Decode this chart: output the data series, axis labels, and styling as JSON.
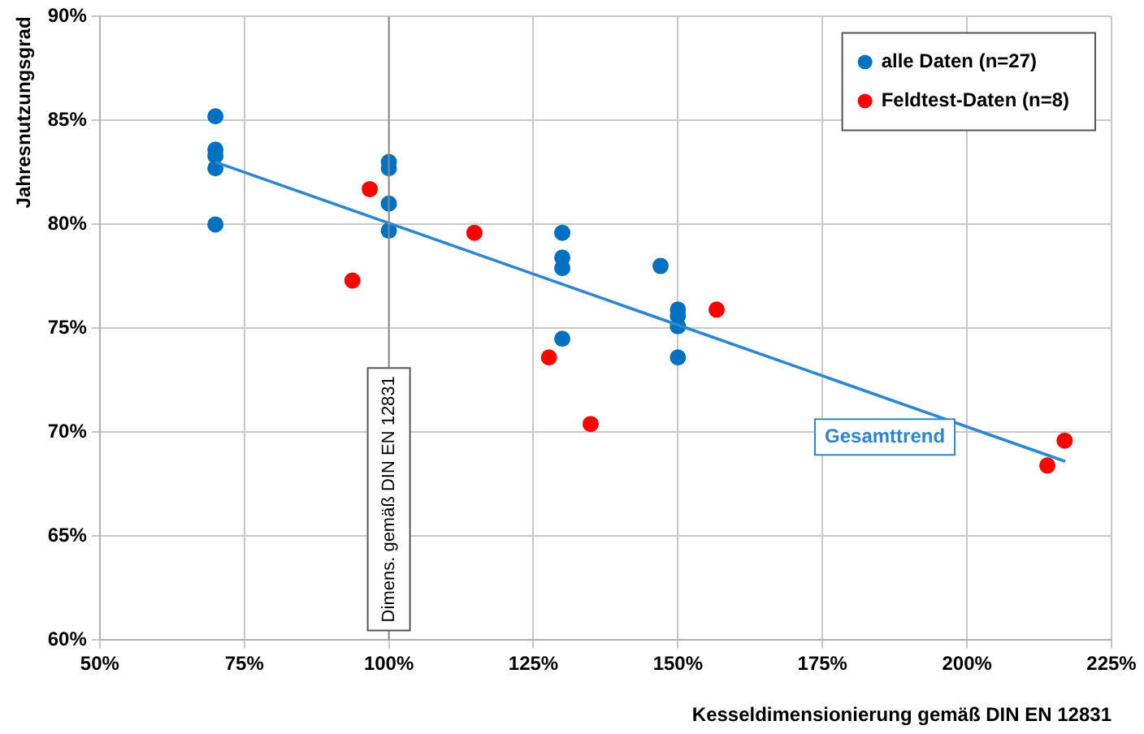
{
  "chart_data": {
    "type": "scatter",
    "xlabel": "Kesseldimensionierung gemäß DIN EN 12831",
    "ylabel": "Jahresnutzungsgrad",
    "xlim": [
      50,
      225
    ],
    "xticks": [
      {
        "value": 50,
        "label": "50%"
      },
      {
        "value": 75,
        "label": "75%"
      },
      {
        "value": 100,
        "label": "100%"
      },
      {
        "value": 125,
        "label": "125%"
      },
      {
        "value": 150,
        "label": "150%"
      },
      {
        "value": 175,
        "label": "175%"
      },
      {
        "value": 200,
        "label": "200%"
      },
      {
        "value": 225,
        "label": "225%"
      }
    ],
    "ylim": [
      60,
      90
    ],
    "yticks": [
      {
        "value": 60,
        "label": "60%"
      },
      {
        "value": 65,
        "label": "65%"
      },
      {
        "value": 70,
        "label": "70%"
      },
      {
        "value": 75,
        "label": "75%"
      },
      {
        "value": 80,
        "label": "80%"
      },
      {
        "value": 85,
        "label": "85%"
      },
      {
        "value": 90,
        "label": "90%"
      }
    ],
    "grid": true,
    "legend": "top right",
    "marker": "circle",
    "series": [
      {
        "name": "alle Daten (n=27)",
        "color": "#0070c0",
        "x": [
          70,
          70,
          70,
          70,
          70,
          100,
          100,
          100,
          100,
          130,
          130,
          130,
          130,
          147,
          150,
          150,
          150,
          150
        ],
        "values": [
          85.2,
          83.6,
          83.3,
          82.7,
          80.0,
          83.0,
          82.7,
          81.0,
          79.7,
          79.6,
          78.4,
          77.9,
          74.5,
          78.0,
          75.9,
          75.6,
          75.1,
          73.6
        ]
      },
      {
        "name": "Feldtest-Daten (n=8)",
        "color": "#ff0000",
        "x": [
          96.7,
          93.7,
          114.8,
          127.7,
          134.9,
          156.7,
          213.9,
          216.9
        ],
        "values": [
          81.7,
          77.3,
          79.6,
          73.6,
          70.4,
          75.9,
          68.4,
          69.6
        ]
      },
      {
        "type": "line",
        "color": "#2e86d0",
        "x": [
          70,
          217
        ],
        "values": [
          83.0,
          68.6
        ],
        "marker": "none",
        "line_style": "solid"
      }
    ],
    "ref_lines": [
      {
        "axis": "x",
        "value": 100,
        "label": "Dimens. gemäß DIN EN 12831",
        "color": "#8c8c8c"
      }
    ],
    "annotations": [
      "Gesamttrend"
    ]
  }
}
